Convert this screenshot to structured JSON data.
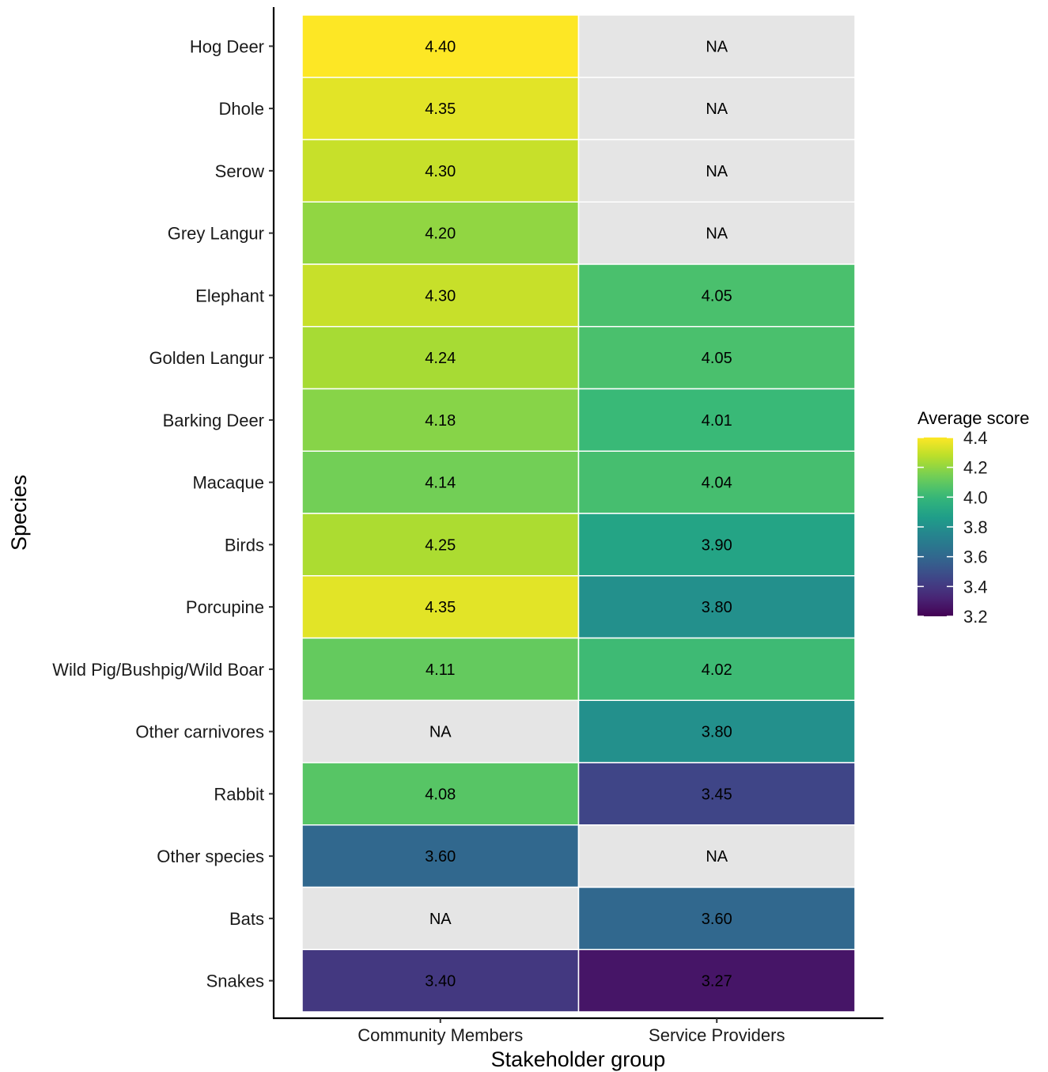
{
  "chart_data": {
    "type": "heatmap",
    "xlabel": "Stakeholder group",
    "ylabel": "Species",
    "x_categories": [
      "Community Members",
      "Service Providers"
    ],
    "y_categories": [
      "Hog Deer",
      "Dhole",
      "Serow",
      "Grey Langur",
      "Elephant",
      "Golden Langur",
      "Barking Deer",
      "Macaque",
      "Birds",
      "Porcupine",
      "Wild Pig/Bushpig/Wild Boar",
      "Other carnivores",
      "Rabbit",
      "Other species",
      "Bats",
      "Snakes"
    ],
    "values": [
      [
        4.4,
        null
      ],
      [
        4.35,
        null
      ],
      [
        4.3,
        null
      ],
      [
        4.2,
        null
      ],
      [
        4.3,
        4.05
      ],
      [
        4.24,
        4.05
      ],
      [
        4.18,
        4.01
      ],
      [
        4.14,
        4.04
      ],
      [
        4.25,
        3.9
      ],
      [
        4.35,
        3.8
      ],
      [
        4.11,
        4.02
      ],
      [
        null,
        3.8
      ],
      [
        4.08,
        3.45
      ],
      [
        3.6,
        null
      ],
      [
        null,
        3.6
      ],
      [
        3.4,
        3.27
      ]
    ],
    "cell_labels": [
      [
        "4.40",
        "NA"
      ],
      [
        "4.35",
        "NA"
      ],
      [
        "4.30",
        "NA"
      ],
      [
        "4.20",
        "NA"
      ],
      [
        "4.30",
        "4.05"
      ],
      [
        "4.24",
        "4.05"
      ],
      [
        "4.18",
        "4.01"
      ],
      [
        "4.14",
        "4.04"
      ],
      [
        "4.25",
        "3.90"
      ],
      [
        "4.35",
        "3.80"
      ],
      [
        "4.11",
        "4.02"
      ],
      [
        "NA",
        "3.80"
      ],
      [
        "4.08",
        "3.45"
      ],
      [
        "3.60",
        "NA"
      ],
      [
        "NA",
        "3.60"
      ],
      [
        "3.40",
        "3.27"
      ]
    ],
    "na_color": "#e5e5e5",
    "colorscale": "viridis",
    "color_range": [
      3.2,
      4.4
    ],
    "legend": {
      "title": "Average score",
      "ticks": [
        4.4,
        4.2,
        4.0,
        3.8,
        3.6,
        3.4,
        3.2
      ],
      "tick_labels": [
        "4.4",
        "4.2",
        "4.0",
        "3.8",
        "3.6",
        "3.4",
        "3.2"
      ],
      "position": "right"
    },
    "grid": false
  }
}
